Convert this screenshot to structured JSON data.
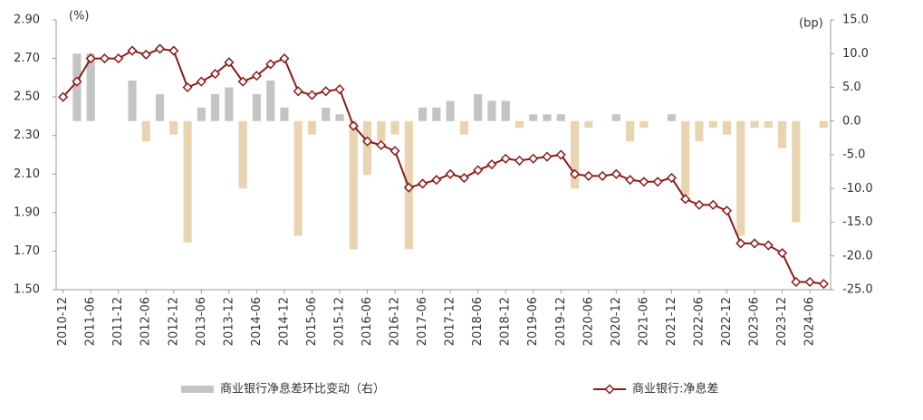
{
  "chart_data": {
    "type": "combo",
    "y_label": "(%)",
    "y2_label": "(bp)",
    "categories": [
      "2010-12",
      null,
      "2011-06",
      null,
      "2011-12",
      null,
      "2012-06",
      null,
      "2012-12",
      null,
      "2013-06",
      null,
      "2013-12",
      null,
      "2014-06",
      null,
      "2014-12",
      null,
      "2015-06",
      null,
      "2015-12",
      null,
      "2016-06",
      null,
      "2016-12",
      null,
      "2017-06",
      null,
      "2017-12",
      null,
      "2018-06",
      null,
      "2018-12",
      null,
      "2019-06",
      null,
      "2019-12",
      null,
      "2020-06",
      null,
      "2020-12",
      null,
      "2021-06",
      null,
      "2021-12",
      null,
      "2022-06",
      null,
      "2022-12",
      null,
      "2023-06",
      null,
      "2023-12",
      null,
      "2024-06",
      null
    ],
    "ylim": [
      1.5,
      2.9
    ],
    "yticks": [
      {
        "value": 1.5,
        "label": "1.50"
      },
      {
        "value": 1.7,
        "label": "1.70"
      },
      {
        "value": 1.9,
        "label": "1.90"
      },
      {
        "value": 2.1,
        "label": "2.10"
      },
      {
        "value": 2.3,
        "label": "2.30"
      },
      {
        "value": 2.5,
        "label": "2.50"
      },
      {
        "value": 2.7,
        "label": "2.70"
      },
      {
        "value": 2.9,
        "label": "2.90"
      }
    ],
    "y2lim": [
      -25,
      15
    ],
    "y2ticks": [
      {
        "value": -25,
        "label": "-25.0"
      },
      {
        "value": -20,
        "label": "-20.0"
      },
      {
        "value": -15,
        "label": "-15.0"
      },
      {
        "value": -10,
        "label": "-10.0"
      },
      {
        "value": -5,
        "label": "-5.0"
      },
      {
        "value": 0,
        "label": "0.0"
      },
      {
        "value": 5,
        "label": "5.0"
      },
      {
        "value": 10,
        "label": "10.0"
      },
      {
        "value": 15,
        "label": "15.0"
      }
    ],
    "legend": "bottom",
    "series": [
      {
        "name": "商业银行净息差环比变动（右）",
        "type": "bar",
        "axis": "y2",
        "color": "#c4c4c4",
        "negative_color": "#e8d4b0",
        "values": [
          null,
          10,
          10,
          0,
          0,
          6,
          -3,
          4,
          -2,
          -18,
          2,
          4,
          5,
          -10,
          4,
          6,
          2,
          -17,
          -2,
          2,
          1,
          -19,
          -8,
          -3,
          -2,
          -19,
          2,
          2,
          3,
          -2,
          4,
          3,
          3,
          -1,
          1,
          1,
          1,
          -10,
          -1,
          0,
          1,
          -3,
          -1,
          0,
          1,
          -11,
          -3,
          -1,
          -2,
          -17,
          -1,
          -1,
          -4,
          -15,
          0,
          -1
        ]
      },
      {
        "name": "商业银行:净息差",
        "type": "line",
        "axis": "y",
        "color": "#8b1a1a",
        "values": [
          2.5,
          2.58,
          2.7,
          2.7,
          2.7,
          2.74,
          2.72,
          2.75,
          2.74,
          2.55,
          2.58,
          2.62,
          2.68,
          2.58,
          2.61,
          2.67,
          2.7,
          2.53,
          2.51,
          2.53,
          2.54,
          2.35,
          2.27,
          2.25,
          2.22,
          2.03,
          2.05,
          2.07,
          2.1,
          2.08,
          2.12,
          2.15,
          2.18,
          2.17,
          2.18,
          2.19,
          2.2,
          2.1,
          2.09,
          2.09,
          2.1,
          2.07,
          2.06,
          2.06,
          2.08,
          1.97,
          1.94,
          1.94,
          1.91,
          1.74,
          1.74,
          1.73,
          1.69,
          1.54,
          1.54,
          1.53
        ]
      }
    ]
  }
}
